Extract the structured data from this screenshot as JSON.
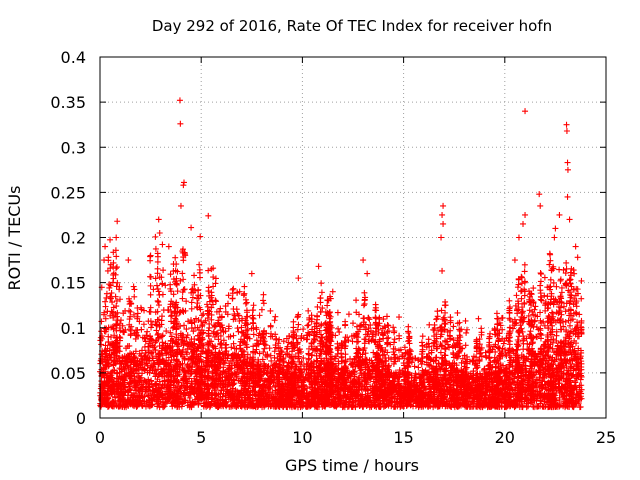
{
  "chart_data": {
    "type": "scatter",
    "title": "Day 292 of 2016, Rate Of TEC Index for receiver hofn",
    "xlabel": "GPS time / hours",
    "ylabel": "ROTI / TECUs",
    "xlim": [
      0,
      25
    ],
    "ylim": [
      0,
      0.4
    ],
    "xticks": [
      0,
      5,
      10,
      15,
      20,
      25
    ],
    "xtick_labels": [
      "0",
      "5",
      "10",
      "15",
      "20",
      "25"
    ],
    "yticks": [
      0,
      0.05,
      0.1,
      0.15,
      0.2,
      0.25,
      0.3,
      0.35,
      0.4
    ],
    "ytick_labels": [
      "0",
      "0.05",
      "0.1",
      "0.15",
      "0.2",
      "0.25",
      "0.3",
      "0.35",
      "0.4"
    ],
    "grid": true,
    "marker": "+",
    "color": "#ff0000",
    "data_range_x": [
      0,
      23.8
    ],
    "envelope": {
      "x": [
        0,
        0.5,
        1,
        1.5,
        2,
        2.5,
        3,
        3.5,
        4,
        4.5,
        5,
        5.5,
        6,
        6.5,
        7,
        7.5,
        8,
        8.5,
        9,
        9.5,
        10,
        10.5,
        11,
        11.5,
        12,
        12.5,
        13,
        13.5,
        14,
        14.5,
        15,
        15.5,
        16,
        16.5,
        17,
        17.5,
        18,
        18.5,
        19,
        19.5,
        20,
        20.5,
        21,
        21.5,
        22,
        22.5,
        23,
        23.5,
        23.8
      ],
      "typical_max": [
        0.11,
        0.14,
        0.12,
        0.1,
        0.11,
        0.14,
        0.15,
        0.12,
        0.15,
        0.13,
        0.12,
        0.12,
        0.1,
        0.11,
        0.1,
        0.09,
        0.09,
        0.08,
        0.07,
        0.07,
        0.08,
        0.09,
        0.1,
        0.09,
        0.08,
        0.09,
        0.1,
        0.09,
        0.07,
        0.07,
        0.07,
        0.06,
        0.07,
        0.08,
        0.1,
        0.08,
        0.07,
        0.06,
        0.07,
        0.07,
        0.08,
        0.1,
        0.12,
        0.11,
        0.13,
        0.12,
        0.14,
        0.12,
        0.1
      ]
    },
    "peaks": [
      {
        "x": 3.95,
        "y": 0.352
      },
      {
        "x": 3.97,
        "y": 0.326
      },
      {
        "x": 4.15,
        "y": 0.261
      },
      {
        "x": 4.12,
        "y": 0.258
      },
      {
        "x": 4.0,
        "y": 0.235
      },
      {
        "x": 5.35,
        "y": 0.224
      },
      {
        "x": 4.5,
        "y": 0.211
      },
      {
        "x": 4.95,
        "y": 0.201
      },
      {
        "x": 2.9,
        "y": 0.22
      },
      {
        "x": 2.95,
        "y": 0.205
      },
      {
        "x": 0.85,
        "y": 0.218
      },
      {
        "x": 0.8,
        "y": 0.2
      },
      {
        "x": 0.25,
        "y": 0.19
      },
      {
        "x": 0.2,
        "y": 0.175
      },
      {
        "x": 2.5,
        "y": 0.18
      },
      {
        "x": 1.4,
        "y": 0.175
      },
      {
        "x": 3.4,
        "y": 0.19
      },
      {
        "x": 5.5,
        "y": 0.165
      },
      {
        "x": 6.9,
        "y": 0.14
      },
      {
        "x": 7.5,
        "y": 0.16
      },
      {
        "x": 9.8,
        "y": 0.155
      },
      {
        "x": 10.8,
        "y": 0.168
      },
      {
        "x": 13.0,
        "y": 0.175
      },
      {
        "x": 13.2,
        "y": 0.16
      },
      {
        "x": 16.95,
        "y": 0.235
      },
      {
        "x": 16.9,
        "y": 0.225
      },
      {
        "x": 16.95,
        "y": 0.215
      },
      {
        "x": 16.85,
        "y": 0.2
      },
      {
        "x": 16.9,
        "y": 0.163
      },
      {
        "x": 18.7,
        "y": 0.11
      },
      {
        "x": 21.0,
        "y": 0.34
      },
      {
        "x": 23.05,
        "y": 0.325
      },
      {
        "x": 23.07,
        "y": 0.318
      },
      {
        "x": 23.1,
        "y": 0.283
      },
      {
        "x": 23.12,
        "y": 0.275
      },
      {
        "x": 23.1,
        "y": 0.245
      },
      {
        "x": 21.7,
        "y": 0.248
      },
      {
        "x": 21.75,
        "y": 0.235
      },
      {
        "x": 22.7,
        "y": 0.225
      },
      {
        "x": 22.5,
        "y": 0.21
      },
      {
        "x": 22.45,
        "y": 0.2
      },
      {
        "x": 21.0,
        "y": 0.225
      },
      {
        "x": 20.9,
        "y": 0.215
      },
      {
        "x": 20.7,
        "y": 0.2
      },
      {
        "x": 23.2,
        "y": 0.22
      },
      {
        "x": 23.5,
        "y": 0.19
      },
      {
        "x": 23.6,
        "y": 0.178
      },
      {
        "x": 20.5,
        "y": 0.175
      },
      {
        "x": 22.2,
        "y": 0.17
      },
      {
        "x": 8.0,
        "y": 0.12
      },
      {
        "x": 11.5,
        "y": 0.14
      },
      {
        "x": 12.3,
        "y": 0.115
      }
    ]
  }
}
